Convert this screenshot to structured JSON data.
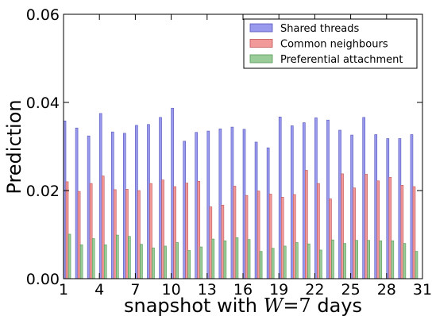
{
  "chart_data": {
    "type": "bar",
    "xlabel_prefix": "snapshot with ",
    "xlabel_var": "W",
    "xlabel_eq": "=7",
    "xlabel_suffix": " days",
    "ylabel": "Prediction",
    "ylim": [
      0,
      0.06
    ],
    "xlim": [
      1,
      31
    ],
    "yticks": [
      0,
      0.02,
      0.04,
      0.06
    ],
    "ytick_labels": [
      "0.00",
      "0.02",
      "0.04",
      "0.06"
    ],
    "xticks": [
      1,
      4,
      7,
      10,
      13,
      16,
      19,
      22,
      25,
      28,
      31
    ],
    "xtick_labels": [
      "1",
      "4",
      "7",
      "10",
      "13",
      "16",
      "19",
      "22",
      "25",
      "28",
      "31"
    ],
    "legend_position": "top-right",
    "x": [
      1,
      2,
      3,
      4,
      5,
      6,
      7,
      8,
      9,
      10,
      11,
      12,
      13,
      14,
      15,
      16,
      17,
      18,
      19,
      20,
      21,
      22,
      23,
      24,
      25,
      26,
      27,
      28,
      29,
      30
    ],
    "series": [
      {
        "name": "Shared threads",
        "color": "#9999ee",
        "edge": "#5555bb",
        "values": [
          0.0358,
          0.0342,
          0.0324,
          0.0375,
          0.0333,
          0.033,
          0.0348,
          0.035,
          0.0366,
          0.0387,
          0.0312,
          0.0332,
          0.0335,
          0.034,
          0.0344,
          0.0339,
          0.031,
          0.0297,
          0.0367,
          0.0347,
          0.0354,
          0.0365,
          0.036,
          0.0337,
          0.0326,
          0.0366,
          0.0327,
          0.0318,
          0.0318,
          0.0327
        ]
      },
      {
        "name": "Common neighbours",
        "color": "#f29a9a",
        "edge": "#c05555",
        "values": [
          0.022,
          0.0198,
          0.0216,
          0.0233,
          0.0202,
          0.0203,
          0.02,
          0.0216,
          0.0224,
          0.0209,
          0.0217,
          0.0221,
          0.0163,
          0.0167,
          0.021,
          0.0189,
          0.0199,
          0.0192,
          0.0185,
          0.0191,
          0.0246,
          0.0216,
          0.0181,
          0.0238,
          0.0206,
          0.0237,
          0.0222,
          0.023,
          0.0212,
          0.0209
        ]
      },
      {
        "name": "Preferential attachment",
        "color": "#99cc99",
        "edge": "#559955",
        "values": [
          0.0101,
          0.0077,
          0.0091,
          0.0077,
          0.0099,
          0.0096,
          0.0078,
          0.007,
          0.0074,
          0.0082,
          0.0064,
          0.0072,
          0.009,
          0.0086,
          0.0093,
          0.0089,
          0.0062,
          0.0069,
          0.0074,
          0.0082,
          0.0079,
          0.0065,
          0.0088,
          0.008,
          0.0087,
          0.0087,
          0.0086,
          0.0086,
          0.008,
          0.0062
        ]
      }
    ]
  }
}
